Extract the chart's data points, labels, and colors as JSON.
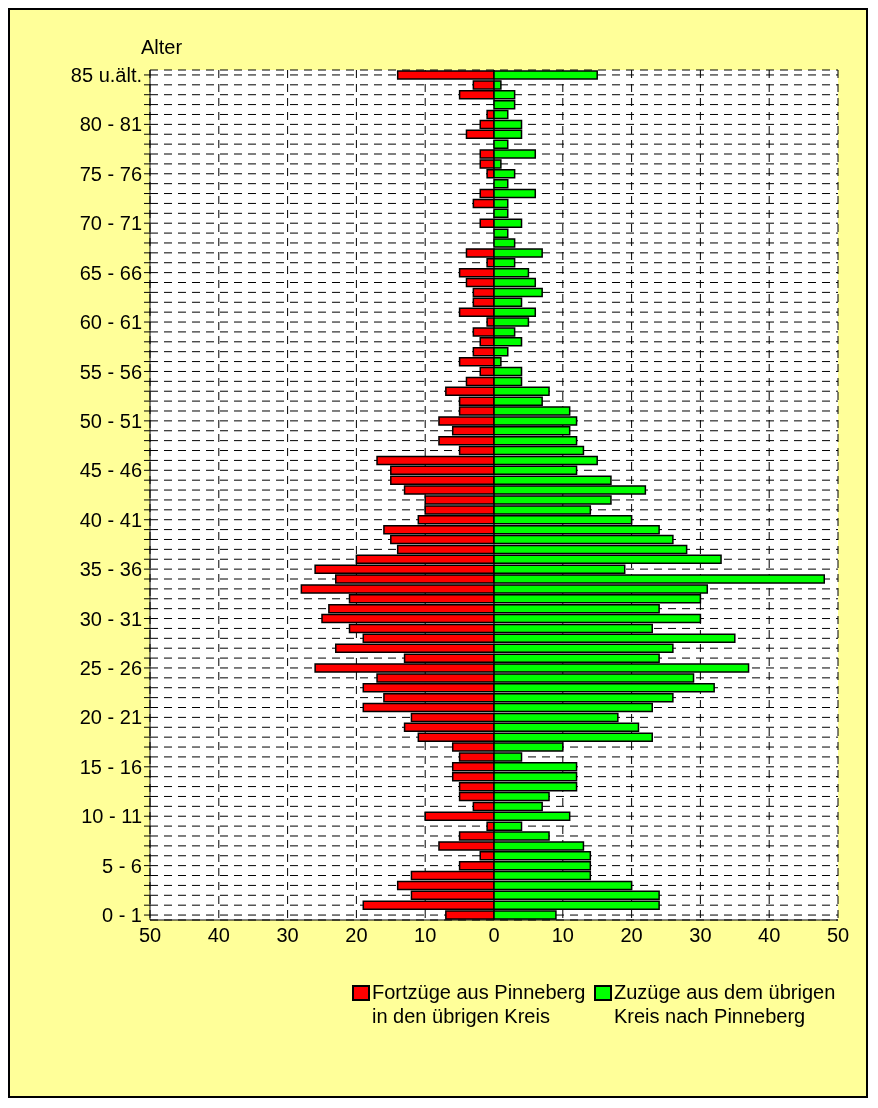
{
  "chart_data": {
    "type": "bar",
    "orientation": "horizontal",
    "ylabel": "Alter",
    "categories": [
      "85 u.ält.",
      null,
      null,
      null,
      null,
      "80 - 81",
      null,
      null,
      null,
      null,
      "75 - 76",
      null,
      null,
      null,
      null,
      "70 - 71",
      null,
      null,
      null,
      null,
      "65 - 66",
      null,
      null,
      null,
      null,
      "60 - 61",
      null,
      null,
      null,
      null,
      "55 - 56",
      null,
      null,
      null,
      null,
      "50 - 51",
      null,
      null,
      null,
      null,
      "45 - 46",
      null,
      null,
      null,
      null,
      "40 - 41",
      null,
      null,
      null,
      null,
      "35 - 36",
      null,
      null,
      null,
      null,
      "30 - 31",
      null,
      null,
      null,
      null,
      "25 - 26",
      null,
      null,
      null,
      null,
      "20 - 21",
      null,
      null,
      null,
      null,
      "15 - 16",
      null,
      null,
      null,
      null,
      "10 - 11",
      null,
      null,
      null,
      null,
      "5 - 6",
      null,
      null,
      null,
      null,
      "0 - 1"
    ],
    "series": [
      {
        "name": "Fortzüge aus Pinneberg in den übrigen Kreis",
        "color": "#ff0000",
        "values": [
          -14,
          -3,
          -5,
          0,
          -1,
          -2,
          -4,
          0,
          -2,
          -2,
          -1,
          0,
          -2,
          -3,
          0,
          -2,
          0,
          0,
          -4,
          -1,
          -5,
          -4,
          -3,
          -3,
          -5,
          -1,
          -3,
          -2,
          -3,
          -5,
          -2,
          -4,
          -7,
          -5,
          -5,
          -8,
          -6,
          -8,
          -5,
          -17,
          -15,
          -15,
          -13,
          -10,
          -10,
          -11,
          -16,
          -15,
          -14,
          -20,
          -26,
          -23,
          -28,
          -21,
          -24,
          -25,
          -21,
          -19,
          -23,
          -13,
          -26,
          -17,
          -19,
          -16,
          -19,
          -12,
          -13,
          -11,
          -6,
          -5,
          -6,
          -6,
          -5,
          -5,
          -3,
          -10,
          -1,
          -5,
          -8,
          -2,
          -5,
          -12,
          -14,
          -12,
          -19,
          -7
        ]
      },
      {
        "name": "Zuzüge aus dem übrigen Kreis nach Pinneberg",
        "color": "#00ff00",
        "values": [
          15,
          1,
          3,
          3,
          2,
          4,
          4,
          2,
          6,
          1,
          3,
          2,
          6,
          2,
          2,
          4,
          2,
          3,
          7,
          3,
          5,
          6,
          7,
          4,
          6,
          5,
          3,
          4,
          2,
          1,
          4,
          4,
          8,
          7,
          11,
          12,
          11,
          12,
          13,
          15,
          12,
          17,
          22,
          17,
          14,
          20,
          24,
          26,
          28,
          33,
          19,
          48,
          31,
          30,
          24,
          30,
          23,
          35,
          26,
          24,
          37,
          29,
          32,
          26,
          23,
          18,
          21,
          23,
          10,
          4,
          12,
          12,
          12,
          8,
          7,
          11,
          4,
          8,
          13,
          14,
          14,
          14,
          20,
          24,
          24,
          9
        ]
      }
    ],
    "xlim": [
      -50,
      50
    ],
    "xticks": [
      {
        "value": -50,
        "label": "50"
      },
      {
        "value": -40,
        "label": "40"
      },
      {
        "value": -30,
        "label": "30"
      },
      {
        "value": -20,
        "label": "20"
      },
      {
        "value": -10,
        "label": "10"
      },
      0,
      10,
      20,
      30,
      40,
      50
    ],
    "grid": true,
    "legend": "bottom",
    "stacked": true
  }
}
